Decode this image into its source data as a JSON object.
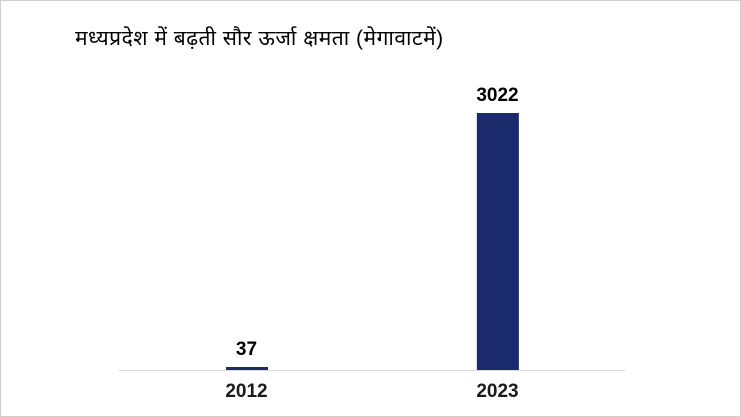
{
  "chart_data": {
    "type": "bar",
    "title": "मध्यप्रदेश में बढ़ती सौर ऊर्जा क्षमता (मेगावाटमें)",
    "categories": [
      "2012",
      "2023"
    ],
    "values": [
      37,
      3022
    ],
    "data_labels": [
      "37",
      "3022"
    ],
    "xlabel": "",
    "ylabel": "",
    "ylim": [
      0,
      3022
    ],
    "bar_color": "#1a2a6b",
    "axis_line_color": "#d9d9d9",
    "grid": false,
    "legend_position": "none"
  }
}
